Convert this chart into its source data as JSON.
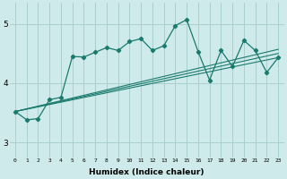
{
  "xlabel": "Humidex (Indice chaleur)",
  "ylabel": "",
  "background_color": "#ceeaea",
  "grid_color": "#aacfcf",
  "line_color": "#1a7a6e",
  "xlim": [
    -0.5,
    23.5
  ],
  "ylim": [
    2.75,
    5.35
  ],
  "xticks": [
    0,
    1,
    2,
    3,
    4,
    5,
    6,
    7,
    8,
    9,
    10,
    11,
    12,
    13,
    14,
    15,
    16,
    17,
    18,
    19,
    20,
    21,
    22,
    23
  ],
  "yticks": [
    3,
    4,
    5
  ],
  "series_main": {
    "x": [
      0,
      1,
      2,
      3,
      4,
      5,
      6,
      7,
      8,
      9,
      10,
      11,
      12,
      13,
      14,
      15,
      16,
      17,
      18,
      19,
      20,
      21,
      22,
      23
    ],
    "y": [
      3.52,
      3.38,
      3.4,
      3.72,
      3.76,
      4.45,
      4.44,
      4.52,
      4.6,
      4.55,
      4.7,
      4.75,
      4.55,
      4.63,
      4.97,
      5.07,
      4.53,
      4.05,
      4.55,
      4.28,
      4.72,
      4.55,
      4.18,
      4.43
    ]
  },
  "series_linear": [
    {
      "x0": 0,
      "x1": 23,
      "y0": 3.52,
      "y1": 4.5
    },
    {
      "x0": 0,
      "x1": 23,
      "y0": 3.52,
      "y1": 4.57
    },
    {
      "x0": 0,
      "x1": 23,
      "y0": 3.52,
      "y1": 4.43
    }
  ]
}
